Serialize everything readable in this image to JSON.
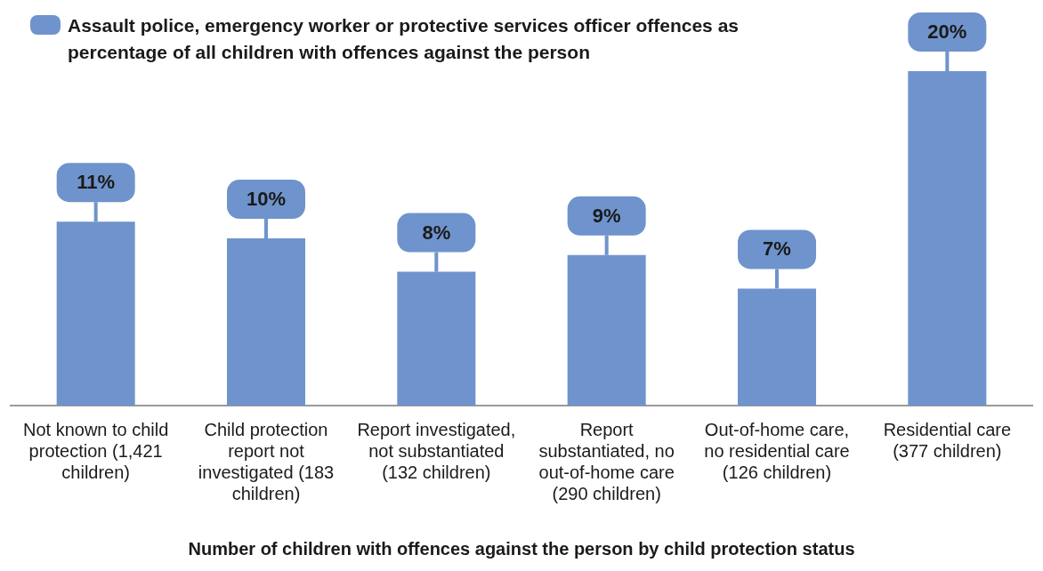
{
  "chart_data": {
    "type": "bar",
    "xlabel": "Number of children with offences against the person by child protection status",
    "categories": [
      "Not known to child protection (1,421 children)",
      "Child protection report not investigated (183 children)",
      "Report investigated, not substantiated (132 children)",
      "Report substantiated, no out-of-home care (290 children)",
      "Out-of-home care, no residential care (126 children)",
      "Residential care (377 children)"
    ],
    "series": [
      {
        "name": "Assault police, emergency worker or protective services officer offences as percentage of all children with offences against the person",
        "color": "#6f93cc",
        "values": [
          11,
          10,
          8,
          9,
          7,
          20
        ],
        "value_labels": [
          "11%",
          "10%",
          "8%",
          "9%",
          "7%",
          "20%"
        ]
      }
    ],
    "ylim": [
      0,
      20
    ],
    "tick_labels": "x",
    "grid": false,
    "legend": "top left"
  }
}
